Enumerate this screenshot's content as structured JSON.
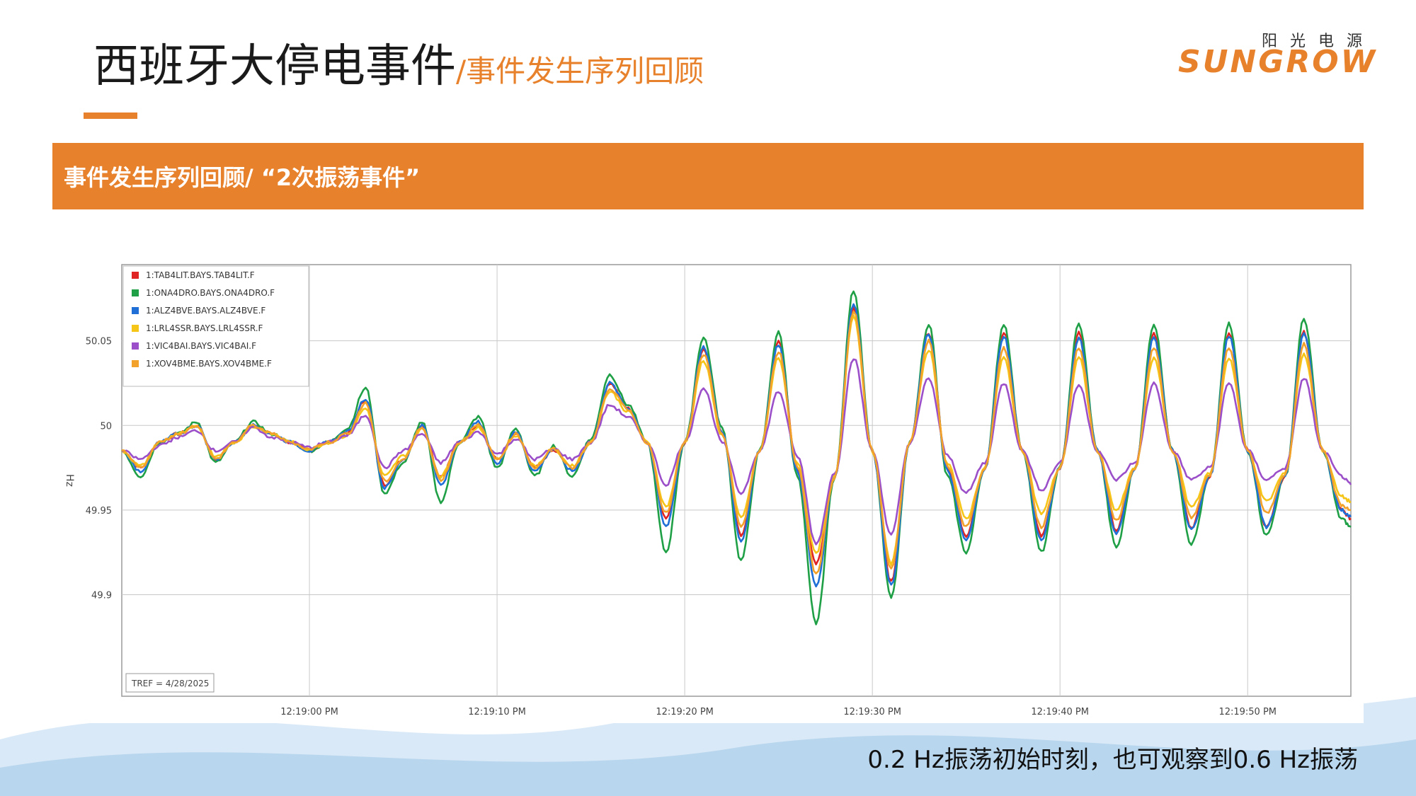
{
  "header": {
    "title_main": "西班牙大停电事件",
    "title_sub": "/事件发生序列回顾"
  },
  "logo": {
    "cn": "阳光电源",
    "en": "SUNGROW"
  },
  "banner": {
    "text": "事件发生序列回顾/ “2次振荡事件”"
  },
  "caption": "0.2 Hz振荡初始时刻，也可观察到0.6 Hz振荡",
  "colors": {
    "accent": "#e8812b",
    "banner": "#e8812b"
  },
  "chart_data": {
    "type": "line",
    "ylabel": "Hz",
    "ylim": [
      49.84,
      50.095
    ],
    "xlim_seconds_after_12_19": [
      -10,
      55.5
    ],
    "x_ticks": [
      "12:19:00 PM",
      "12:19:10 PM",
      "12:19:20 PM",
      "12:19:30 PM",
      "12:19:40 PM",
      "12:19:50 PM"
    ],
    "y_ticks": [
      {
        "value": 49.9,
        "label": "49.9"
      },
      {
        "value": 49.95,
        "label": "49.95"
      },
      {
        "value": 50.0,
        "label": "50"
      },
      {
        "value": 50.05,
        "label": "50.05"
      }
    ],
    "tref_label": "TREF = 4/28/2025",
    "grid": true,
    "legend_position": "top-left",
    "x_seconds": [
      -10,
      -9,
      -8,
      -7,
      -6,
      -5,
      -4,
      -3,
      -2,
      -1,
      0,
      1,
      2,
      3,
      4,
      5,
      6,
      7,
      8,
      9,
      10,
      11,
      12,
      13,
      14,
      15,
      16,
      17,
      18,
      19,
      20,
      21,
      22,
      23,
      24,
      25,
      26,
      27,
      28,
      29,
      30,
      31,
      32,
      33,
      34,
      35,
      36,
      37,
      38,
      39,
      40,
      41,
      42,
      43,
      44,
      45,
      46,
      47,
      48,
      49,
      50,
      51,
      52,
      53,
      54,
      55,
      55.5
    ],
    "series": [
      {
        "name": "1:TAB4LIT.BAYS.TAB4LIT.F",
        "color": "#e02424",
        "values": [
          49.985,
          49.975,
          49.99,
          49.995,
          50.0,
          49.98,
          49.99,
          50.0,
          49.995,
          49.99,
          49.985,
          49.99,
          49.995,
          50.015,
          49.965,
          49.98,
          50.0,
          49.97,
          49.99,
          50.0,
          49.98,
          49.995,
          49.975,
          49.985,
          49.975,
          49.99,
          50.025,
          50.01,
          49.99,
          49.945,
          49.99,
          50.045,
          49.995,
          49.935,
          49.985,
          50.05,
          49.975,
          49.918,
          49.97,
          50.07,
          49.985,
          49.908,
          49.99,
          50.055,
          49.975,
          49.935,
          49.975,
          50.055,
          49.985,
          49.935,
          49.975,
          50.055,
          49.985,
          49.938,
          49.975,
          50.055,
          49.985,
          49.94,
          49.97,
          50.055,
          49.985,
          49.94,
          49.97,
          50.055,
          49.985,
          49.95,
          49.945
        ]
      },
      {
        "name": "1:ONA4DRO.BAYS.ONA4DRO.F",
        "color": "#1fa046",
        "values": [
          49.985,
          49.97,
          49.99,
          49.995,
          50.002,
          49.978,
          49.99,
          50.002,
          49.995,
          49.99,
          49.985,
          49.99,
          49.998,
          50.022,
          49.96,
          49.978,
          50.002,
          49.955,
          49.99,
          50.005,
          49.975,
          49.998,
          49.97,
          49.988,
          49.97,
          49.992,
          50.03,
          50.012,
          49.99,
          49.925,
          49.99,
          50.052,
          49.998,
          49.92,
          49.985,
          50.055,
          49.97,
          49.883,
          49.97,
          50.08,
          49.985,
          49.898,
          49.99,
          50.06,
          49.97,
          49.925,
          49.975,
          50.06,
          49.985,
          49.925,
          49.975,
          50.06,
          49.985,
          49.928,
          49.975,
          50.06,
          49.985,
          49.93,
          49.97,
          50.06,
          49.985,
          49.935,
          49.97,
          50.063,
          49.985,
          49.945,
          49.94
        ]
      },
      {
        "name": "1:ALZ4BVE.BAYS.ALZ4BVE.F",
        "color": "#1f6fd6",
        "values": [
          49.985,
          49.973,
          49.99,
          49.995,
          50.0,
          49.98,
          49.99,
          50.0,
          49.995,
          49.99,
          49.985,
          49.99,
          49.996,
          50.016,
          49.963,
          49.98,
          50.0,
          49.965,
          49.99,
          50.002,
          49.978,
          49.996,
          49.973,
          49.986,
          49.973,
          49.99,
          50.025,
          50.01,
          49.99,
          49.94,
          49.99,
          50.046,
          49.996,
          49.932,
          49.985,
          50.048,
          49.973,
          49.905,
          49.97,
          50.072,
          49.985,
          49.905,
          49.99,
          50.054,
          49.973,
          49.932,
          49.975,
          50.053,
          49.985,
          49.932,
          49.975,
          50.052,
          49.985,
          49.936,
          49.975,
          50.052,
          49.985,
          49.938,
          49.97,
          50.053,
          49.985,
          49.94,
          49.97,
          50.055,
          49.985,
          49.95,
          49.946
        ]
      },
      {
        "name": "1:LRL4SSR.BAYS.LRL4SSR.F",
        "color": "#f5c518",
        "values": [
          49.985,
          49.976,
          49.99,
          49.995,
          49.999,
          49.982,
          49.99,
          49.999,
          49.995,
          49.99,
          49.986,
          49.99,
          49.994,
          50.01,
          49.97,
          49.982,
          49.998,
          49.97,
          49.99,
          49.999,
          49.98,
          49.994,
          49.976,
          49.986,
          49.976,
          49.99,
          50.02,
          50.008,
          49.99,
          49.952,
          49.99,
          50.038,
          49.994,
          49.945,
          49.985,
          50.04,
          49.978,
          49.925,
          49.97,
          50.065,
          49.985,
          49.918,
          49.99,
          50.045,
          49.978,
          49.945,
          49.975,
          50.04,
          49.985,
          49.948,
          49.975,
          50.04,
          49.985,
          49.95,
          49.975,
          50.04,
          49.985,
          49.952,
          49.972,
          50.04,
          49.985,
          49.955,
          49.972,
          50.042,
          49.985,
          49.958,
          49.955
        ]
      },
      {
        "name": "1:VIC4BAI.BAYS.VIC4BAI.F",
        "color": "#9b4fc8",
        "values": [
          49.985,
          49.98,
          49.988,
          49.993,
          49.997,
          49.985,
          49.99,
          49.999,
          49.993,
          49.99,
          49.987,
          49.99,
          49.994,
          50.006,
          49.975,
          49.985,
          49.995,
          49.978,
          49.99,
          49.996,
          49.983,
          49.992,
          49.98,
          49.986,
          49.98,
          49.99,
          50.012,
          50.005,
          49.99,
          49.965,
          49.99,
          50.022,
          49.99,
          49.96,
          49.985,
          50.02,
          49.982,
          49.93,
          49.972,
          50.04,
          49.985,
          49.935,
          49.99,
          50.028,
          49.982,
          49.96,
          49.978,
          50.025,
          49.985,
          49.962,
          49.978,
          50.024,
          49.985,
          49.968,
          49.978,
          50.025,
          49.985,
          49.968,
          49.975,
          50.025,
          49.985,
          49.968,
          49.975,
          50.028,
          49.985,
          49.97,
          49.965
        ]
      },
      {
        "name": "1:XOV4BME.BAYS.XOV4BME.F",
        "color": "#f2a12a",
        "values": [
          49.985,
          49.975,
          49.99,
          49.995,
          50.0,
          49.98,
          49.99,
          50.0,
          49.995,
          49.99,
          49.986,
          49.99,
          49.995,
          50.013,
          49.967,
          49.98,
          49.999,
          49.968,
          49.99,
          50.0,
          49.98,
          49.995,
          49.975,
          49.986,
          49.975,
          49.99,
          50.022,
          50.009,
          49.99,
          49.948,
          49.99,
          50.042,
          49.995,
          49.94,
          49.985,
          50.044,
          49.976,
          49.912,
          49.97,
          50.068,
          49.985,
          49.915,
          49.99,
          50.05,
          49.976,
          49.94,
          49.975,
          50.046,
          49.985,
          49.94,
          49.975,
          50.046,
          49.985,
          49.944,
          49.975,
          50.046,
          49.985,
          49.946,
          49.971,
          50.046,
          49.985,
          49.948,
          49.971,
          50.048,
          49.985,
          49.953,
          49.95
        ]
      }
    ]
  }
}
